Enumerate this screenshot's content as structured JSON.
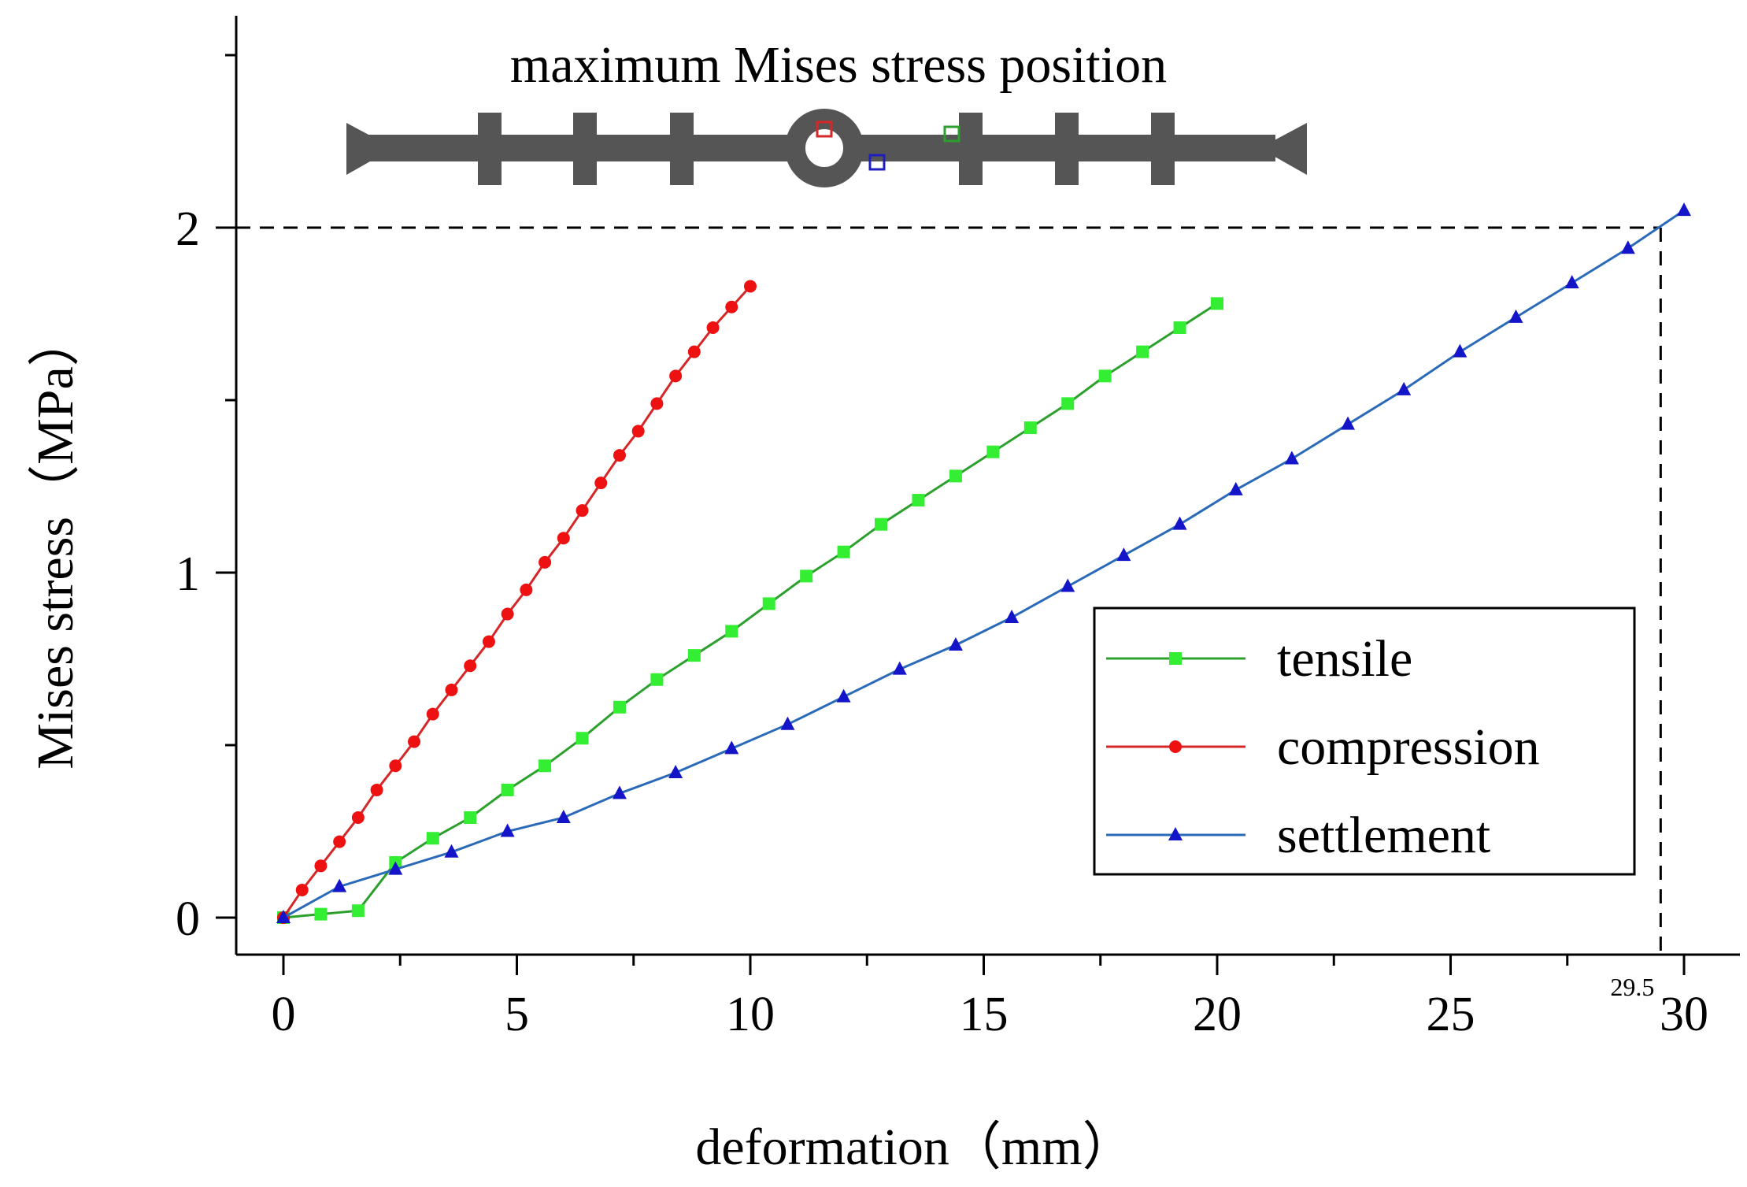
{
  "chart_data": {
    "type": "line",
    "xlabel": "deformation（mm）",
    "ylabel": "Mises stress（MPa）",
    "xlim": [
      -1,
      31.5
    ],
    "ylim": [
      -0.1,
      2.6
    ],
    "x_ticks": [
      0,
      5,
      10,
      15,
      20,
      25,
      30
    ],
    "y_ticks": [
      0,
      1,
      2
    ],
    "grid": false,
    "legend_position": "bottom-right",
    "inset": {
      "title": "maximum Mises stress position",
      "markers": [
        {
          "series": "compression",
          "color": "#d62728"
        },
        {
          "series": "settlement",
          "color": "#1f1fbf"
        },
        {
          "series": "tensile",
          "color": "#2ca02c"
        }
      ]
    },
    "reference_lines": {
      "y": 2,
      "x": 29.5,
      "x_label": "29.5"
    },
    "series": [
      {
        "name": "tensile",
        "color": "#2ca02c",
        "marker_color": "#33ee33",
        "marker": "square",
        "x": [
          0,
          0.8,
          1.6,
          2.4,
          3.2,
          4.0,
          4.8,
          5.6,
          6.4,
          7.2,
          8.0,
          8.8,
          9.6,
          10.4,
          11.2,
          12.0,
          12.8,
          13.6,
          14.4,
          15.2,
          16.0,
          16.8,
          17.6,
          18.4,
          19.2,
          20.0
        ],
        "y": [
          0,
          0.01,
          0.02,
          0.16,
          0.23,
          0.29,
          0.37,
          0.44,
          0.52,
          0.61,
          0.69,
          0.76,
          0.83,
          0.91,
          0.99,
          1.06,
          1.14,
          1.21,
          1.28,
          1.35,
          1.42,
          1.49,
          1.57,
          1.64,
          1.71,
          1.78
        ]
      },
      {
        "name": "compression",
        "color": "#d62728",
        "marker_color": "#ee1111",
        "marker": "circle",
        "x": [
          0,
          0.4,
          0.8,
          1.2,
          1.6,
          2.0,
          2.4,
          2.8,
          3.2,
          3.6,
          4.0,
          4.4,
          4.8,
          5.2,
          5.6,
          6.0,
          6.4,
          6.8,
          7.2,
          7.6,
          8.0,
          8.4,
          8.8,
          9.2,
          9.6,
          10.0
        ],
        "y": [
          0,
          0.08,
          0.15,
          0.22,
          0.29,
          0.37,
          0.44,
          0.51,
          0.59,
          0.66,
          0.73,
          0.8,
          0.88,
          0.95,
          1.03,
          1.1,
          1.18,
          1.26,
          1.34,
          1.41,
          1.49,
          1.57,
          1.64,
          1.71,
          1.77,
          1.83
        ]
      },
      {
        "name": "settlement",
        "color": "#2a6ab8",
        "marker_color": "#1414c8",
        "marker": "triangle",
        "x": [
          0,
          1.2,
          2.4,
          3.6,
          4.8,
          6.0,
          7.2,
          8.4,
          9.6,
          10.8,
          12.0,
          13.2,
          14.4,
          15.6,
          16.8,
          18.0,
          19.2,
          20.4,
          21.6,
          22.8,
          24.0,
          25.2,
          26.4,
          27.6,
          28.8,
          30.0
        ],
        "y": [
          0,
          0.09,
          0.14,
          0.19,
          0.25,
          0.29,
          0.36,
          0.42,
          0.49,
          0.56,
          0.64,
          0.72,
          0.79,
          0.87,
          0.96,
          1.05,
          1.14,
          1.24,
          1.33,
          1.43,
          1.53,
          1.64,
          1.74,
          1.84,
          1.94,
          2.05
        ]
      }
    ]
  }
}
